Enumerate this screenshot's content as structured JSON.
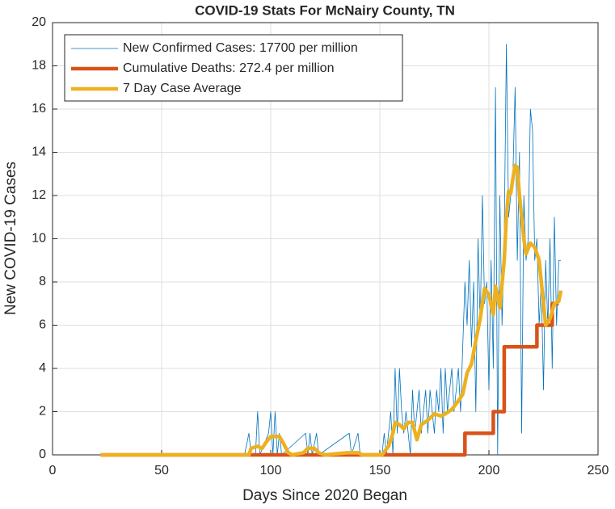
{
  "chart_data": {
    "type": "line",
    "title": "COVID-19 Stats For McNairy County, TN",
    "xlabel": "Days Since 2020 Began",
    "ylabel": "New COVID-19 Cases",
    "xlim": [
      0,
      250
    ],
    "xticks": [
      0,
      50,
      100,
      150,
      200,
      250
    ],
    "ylim": [
      0,
      20
    ],
    "yticks": [
      0,
      2,
      4,
      6,
      8,
      10,
      12,
      14,
      16,
      18,
      20
    ],
    "grid": true,
    "legend": "top-left",
    "series": [
      {
        "name": "New Confirmed Cases: 17700 per million",
        "color": "#0072BD",
        "width": 0.8,
        "x": [
          22,
          88,
          90,
          91,
          93,
          94,
          95,
          99,
          100,
          101,
          102,
          103,
          104,
          105,
          116,
          117,
          118,
          119,
          121,
          122,
          136,
          137,
          140,
          141,
          150,
          151,
          152,
          153,
          154,
          155,
          156,
          157,
          158,
          159,
          160,
          161,
          162,
          163,
          164,
          165,
          166,
          167,
          168,
          169,
          170,
          171,
          172,
          173,
          174,
          175,
          176,
          177,
          178,
          179,
          180,
          181,
          182,
          183,
          184,
          185,
          186,
          187,
          188,
          189,
          190,
          191,
          192,
          193,
          194,
          195,
          196,
          197,
          198,
          199,
          200,
          201,
          202,
          203,
          204,
          205,
          206,
          207,
          208,
          209,
          210,
          211,
          212,
          213,
          214,
          215,
          216,
          217,
          218,
          219,
          220,
          221,
          222,
          223,
          224,
          225,
          226,
          227,
          228,
          229,
          230,
          231,
          232,
          233
        ],
        "values": [
          0,
          0,
          1,
          0,
          0,
          2,
          0,
          1,
          2,
          0,
          2,
          0,
          1,
          0,
          1,
          0,
          1,
          0,
          1,
          0,
          1,
          0,
          1,
          0,
          0,
          0,
          1,
          0,
          1,
          2,
          0,
          4,
          1,
          4,
          2,
          1,
          2,
          1,
          0,
          3,
          1,
          2,
          3,
          1,
          2,
          3,
          1,
          3,
          2,
          1,
          3,
          2,
          4,
          1,
          4,
          2,
          3,
          4,
          2,
          3,
          4,
          2,
          5,
          8,
          6,
          9,
          5,
          8,
          2,
          10,
          6,
          12,
          7,
          8,
          3,
          9,
          4,
          17,
          0,
          12,
          6,
          10,
          19,
          11,
          12,
          13,
          17,
          9,
          14,
          1,
          12,
          9,
          10,
          16,
          15,
          9,
          10,
          6,
          8,
          3,
          9,
          6,
          10,
          4,
          11,
          6,
          9,
          9
        ]
      },
      {
        "name": "Cumulative Deaths: 272.4 per million",
        "color": "#D95319",
        "width": 4.5,
        "x": [
          22,
          189,
          189,
          202,
          202,
          207,
          207,
          222,
          222,
          229,
          229,
          232
        ],
        "values": [
          0,
          0,
          1,
          1,
          2,
          2,
          5,
          5,
          6,
          6,
          7,
          7
        ]
      },
      {
        "name": "7 Day Case Average",
        "color": "#EDB120",
        "width": 4.5,
        "x": [
          22,
          90,
          91,
          94,
          96,
          98,
          100,
          104,
          106,
          108,
          110,
          115,
          117,
          120,
          122,
          125,
          135,
          140,
          142,
          151,
          154,
          156,
          157,
          159,
          161,
          163,
          165,
          167,
          169,
          172,
          175,
          178,
          180,
          183,
          186,
          188,
          190,
          192,
          194,
          196,
          198,
          200,
          202,
          203,
          205,
          207,
          208,
          209,
          210,
          211,
          212,
          213,
          214,
          216,
          217,
          219,
          221,
          223,
          225,
          226,
          228,
          230,
          232,
          233
        ],
        "values": [
          0,
          0,
          0.3,
          0.4,
          0.3,
          0.6,
          0.85,
          0.85,
          0.5,
          0.1,
          0,
          0.1,
          0.3,
          0.3,
          0.1,
          0,
          0.1,
          0.1,
          0,
          0,
          0.4,
          1,
          1.5,
          1.4,
          1.2,
          1.5,
          1.5,
          0.7,
          1.4,
          1.6,
          1.9,
          1.8,
          1.9,
          2.1,
          2.5,
          2.8,
          3.8,
          4.2,
          5.3,
          6.3,
          7.7,
          7.4,
          6.5,
          7.8,
          6.8,
          9,
          11,
          12.2,
          12.1,
          12.8,
          13.4,
          13.3,
          12,
          10,
          9.3,
          9.8,
          9.6,
          9,
          7,
          6,
          6.3,
          7,
          7.1,
          7.6
        ]
      }
    ]
  }
}
